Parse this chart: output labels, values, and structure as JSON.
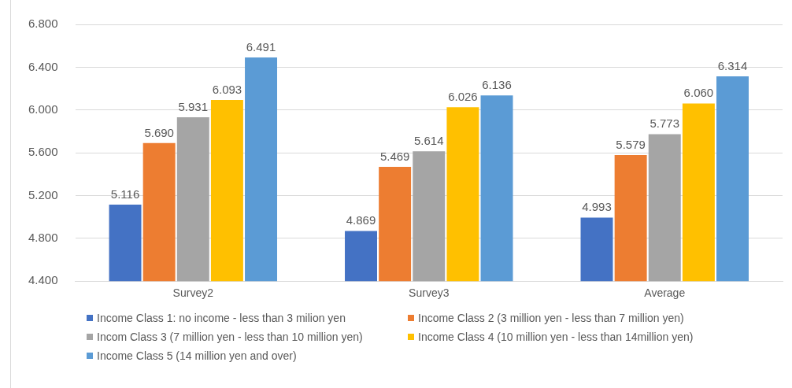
{
  "chart_data": {
    "type": "bar",
    "categories": [
      "Survey2",
      "Survey3",
      "Average"
    ],
    "series": [
      {
        "name": "Income Class 1: no income - less than 3 milion yen",
        "color": "#4472c4",
        "values": [
          5.116,
          4.869,
          4.993
        ],
        "value_labels": [
          "5.116",
          "4.869",
          "4.993"
        ]
      },
      {
        "name": "Income Class 2 (3 million yen - less than 7 million yen)",
        "color": "#ed7d31",
        "values": [
          5.69,
          5.469,
          5.579
        ],
        "value_labels": [
          "5.690",
          "5.469",
          "5.579"
        ]
      },
      {
        "name": "Incom Class 3 (7 million yen - less than 10 million yen)",
        "color": "#a5a5a5",
        "values": [
          5.931,
          5.614,
          5.773
        ],
        "value_labels": [
          "5.931",
          "5.614",
          "5.773"
        ]
      },
      {
        "name": "Income Class 4 (10 million yen - less than 14million yen)",
        "color": "#ffc000",
        "values": [
          6.093,
          6.026,
          6.06
        ],
        "value_labels": [
          "6.093",
          "6.026",
          "6.060"
        ]
      },
      {
        "name": "Income Class 5 (14 million yen and over)",
        "color": "#5b9bd5",
        "values": [
          6.491,
          6.136,
          6.314
        ],
        "value_labels": [
          "6.491",
          "6.136",
          "6.314"
        ]
      }
    ],
    "ylim": [
      4.4,
      6.8
    ],
    "yticks": [
      {
        "value": 4.4,
        "label": "4.400"
      },
      {
        "value": 4.8,
        "label": "4.800"
      },
      {
        "value": 5.2,
        "label": "5.200"
      },
      {
        "value": 5.6,
        "label": "5.600"
      },
      {
        "value": 6.0,
        "label": "6.000"
      },
      {
        "value": 6.4,
        "label": "6.400"
      },
      {
        "value": 6.8,
        "label": "6.800"
      }
    ],
    "grid": "y",
    "legend": "bottom"
  }
}
